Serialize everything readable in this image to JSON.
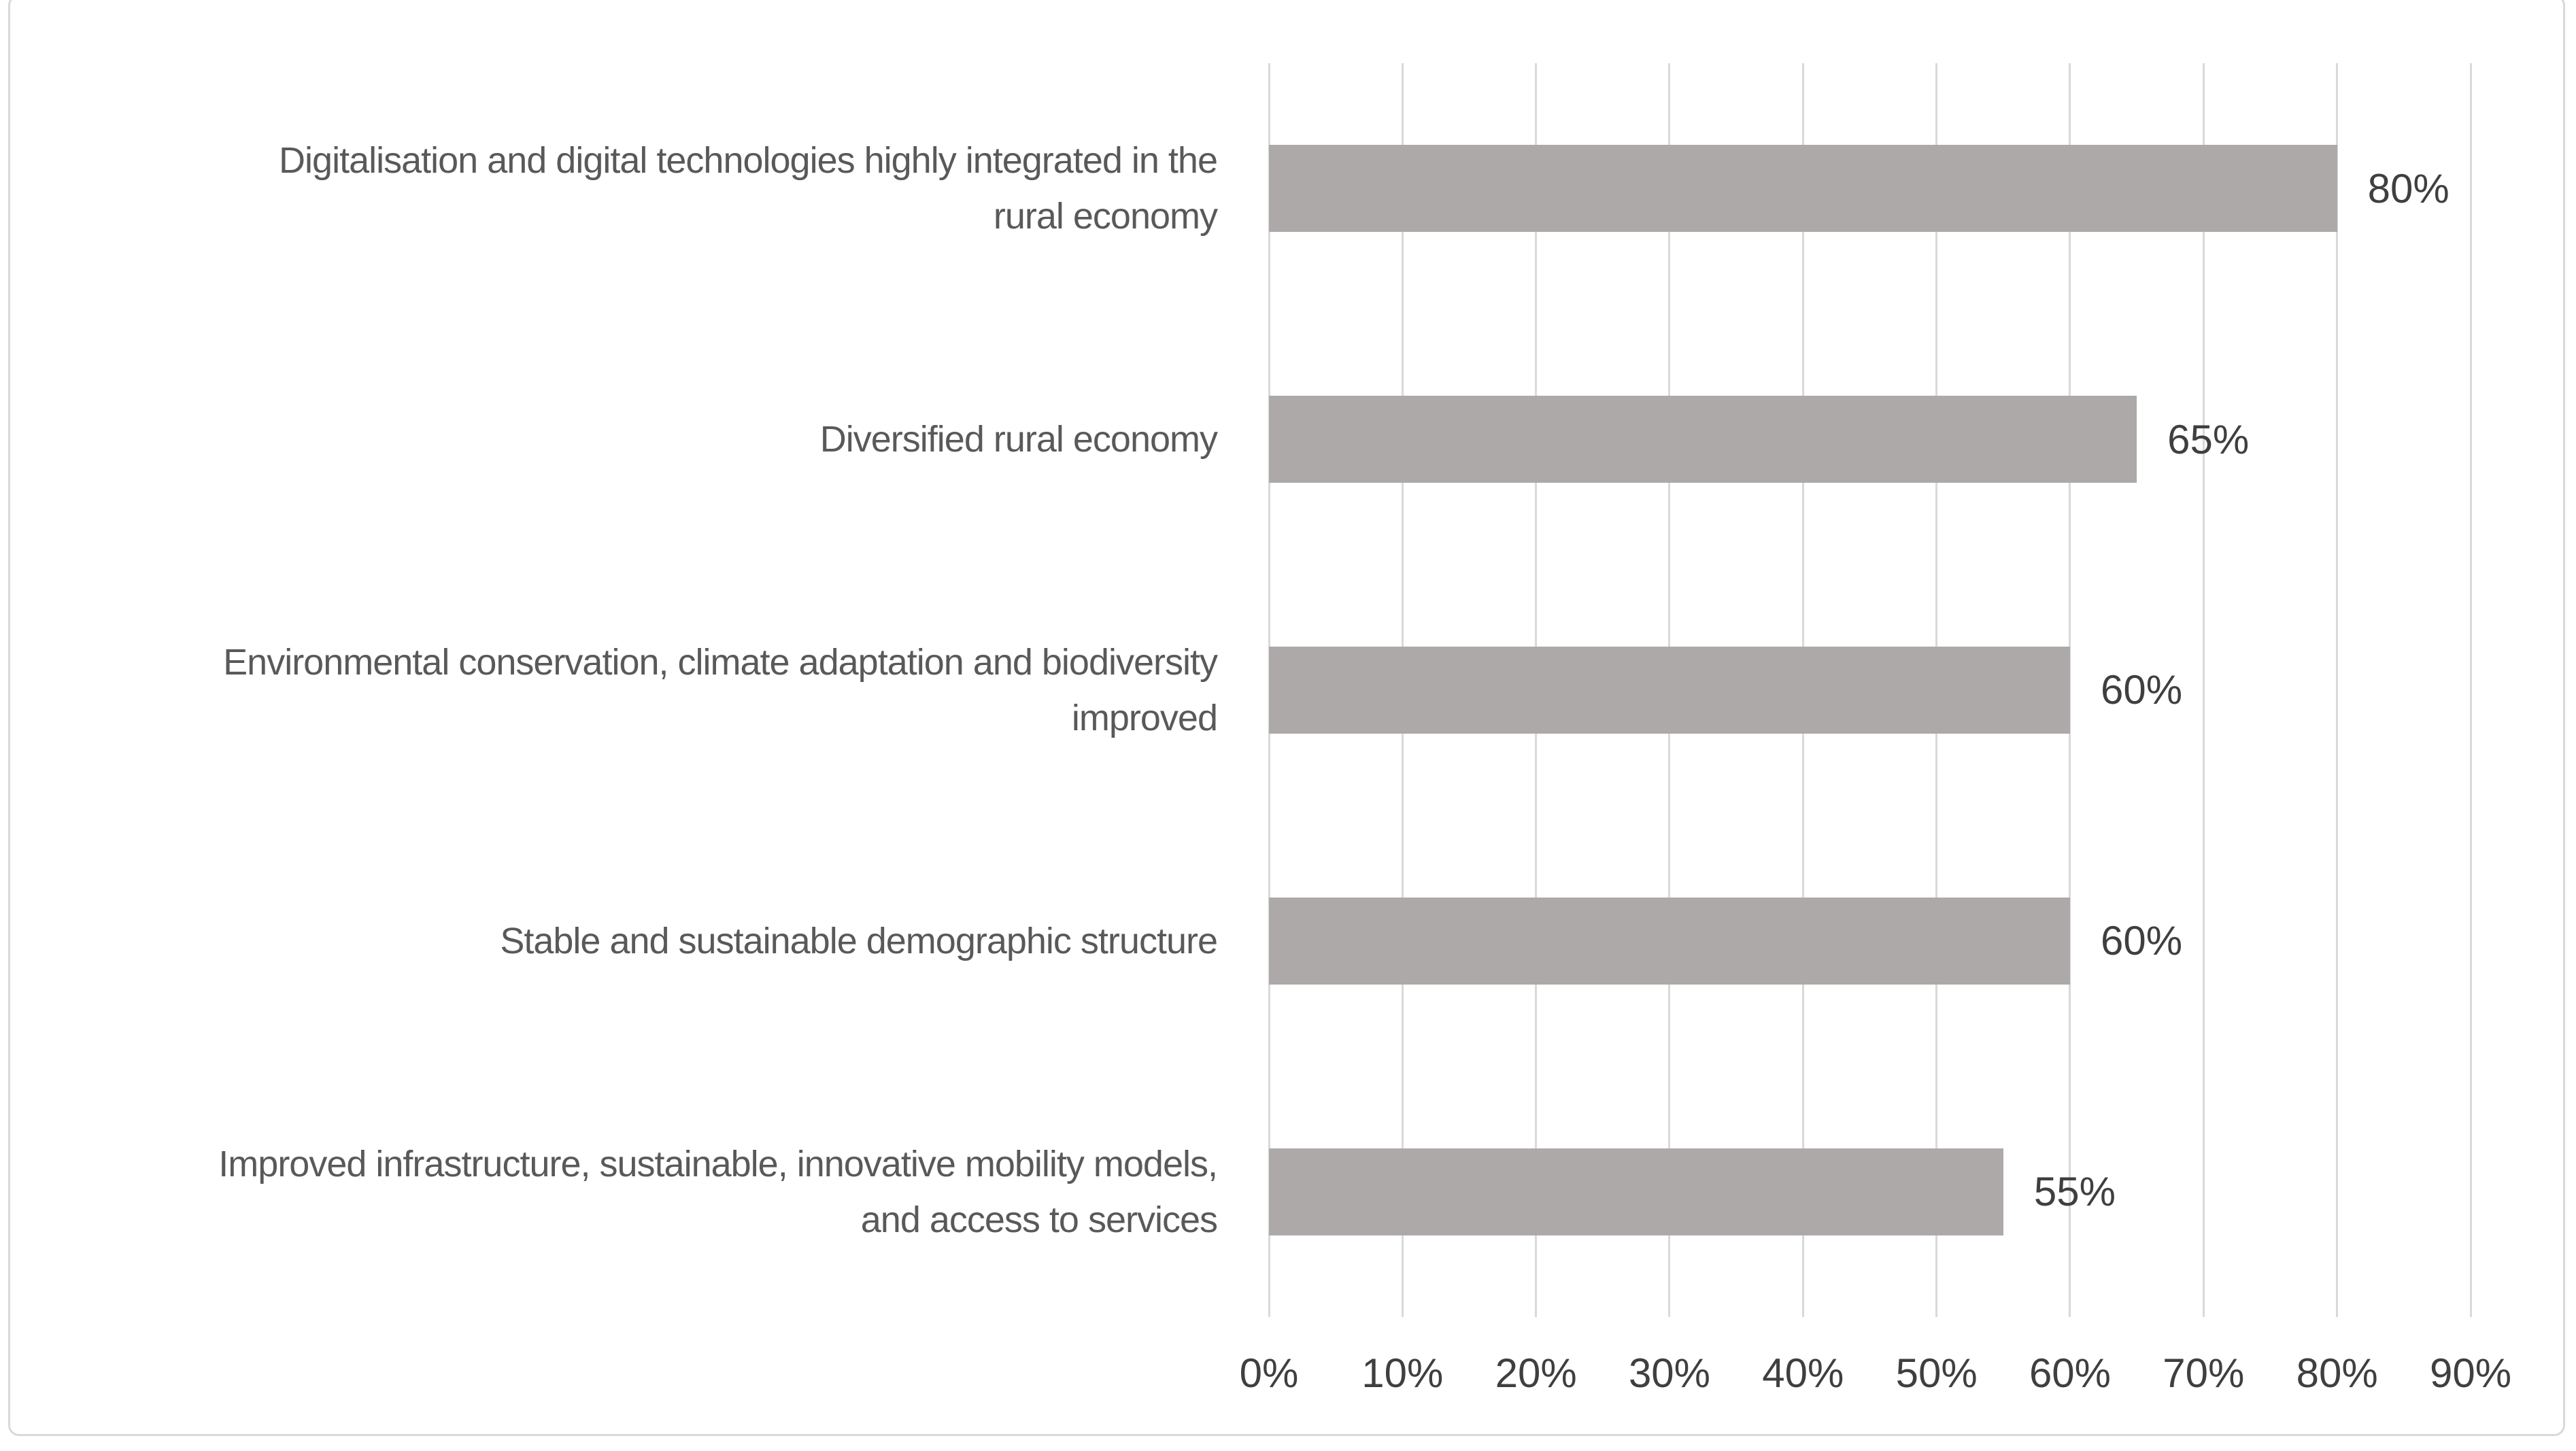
{
  "chart_data": {
    "type": "bar",
    "orientation": "horizontal",
    "title": "",
    "xlabel": "",
    "ylabel": "",
    "categories": [
      "Digitalisation and digital technologies highly integrated in the rural economy",
      "Diversified rural economy",
      "Environmental conservation, climate adaptation and biodiversity improved",
      "Stable and sustainable demographic structure",
      "Improved infrastructure, sustainable, innovative mobility models, and access to services"
    ],
    "category_lines": [
      [
        "Digitalisation and digital technologies highly integrated in the",
        "rural economy"
      ],
      [
        "Diversified rural economy"
      ],
      [
        "Environmental conservation, climate adaptation and biodiversity",
        "improved"
      ],
      [
        "Stable and sustainable demographic structure"
      ],
      [
        "Improved infrastructure, sustainable, innovative mobility models,",
        "and access to services"
      ]
    ],
    "values": [
      80,
      65,
      60,
      60,
      55
    ],
    "value_labels": [
      "80%",
      "65%",
      "60%",
      "60%",
      "55%"
    ],
    "x_ticks": [
      "0%",
      "10%",
      "20%",
      "30%",
      "40%",
      "50%",
      "60%",
      "70%",
      "80%",
      "90%"
    ],
    "xlim": [
      0,
      90
    ],
    "grid": "vertical-gridlines-on",
    "legend": false,
    "colors": {
      "bar": "#aca9a8",
      "gridline": "#d9d9d9",
      "border": "#d9d9d9",
      "category_text": "#595959",
      "tick_text": "#3f3f3f",
      "value_text": "#3f3f3f",
      "background": "#ffffff"
    }
  }
}
